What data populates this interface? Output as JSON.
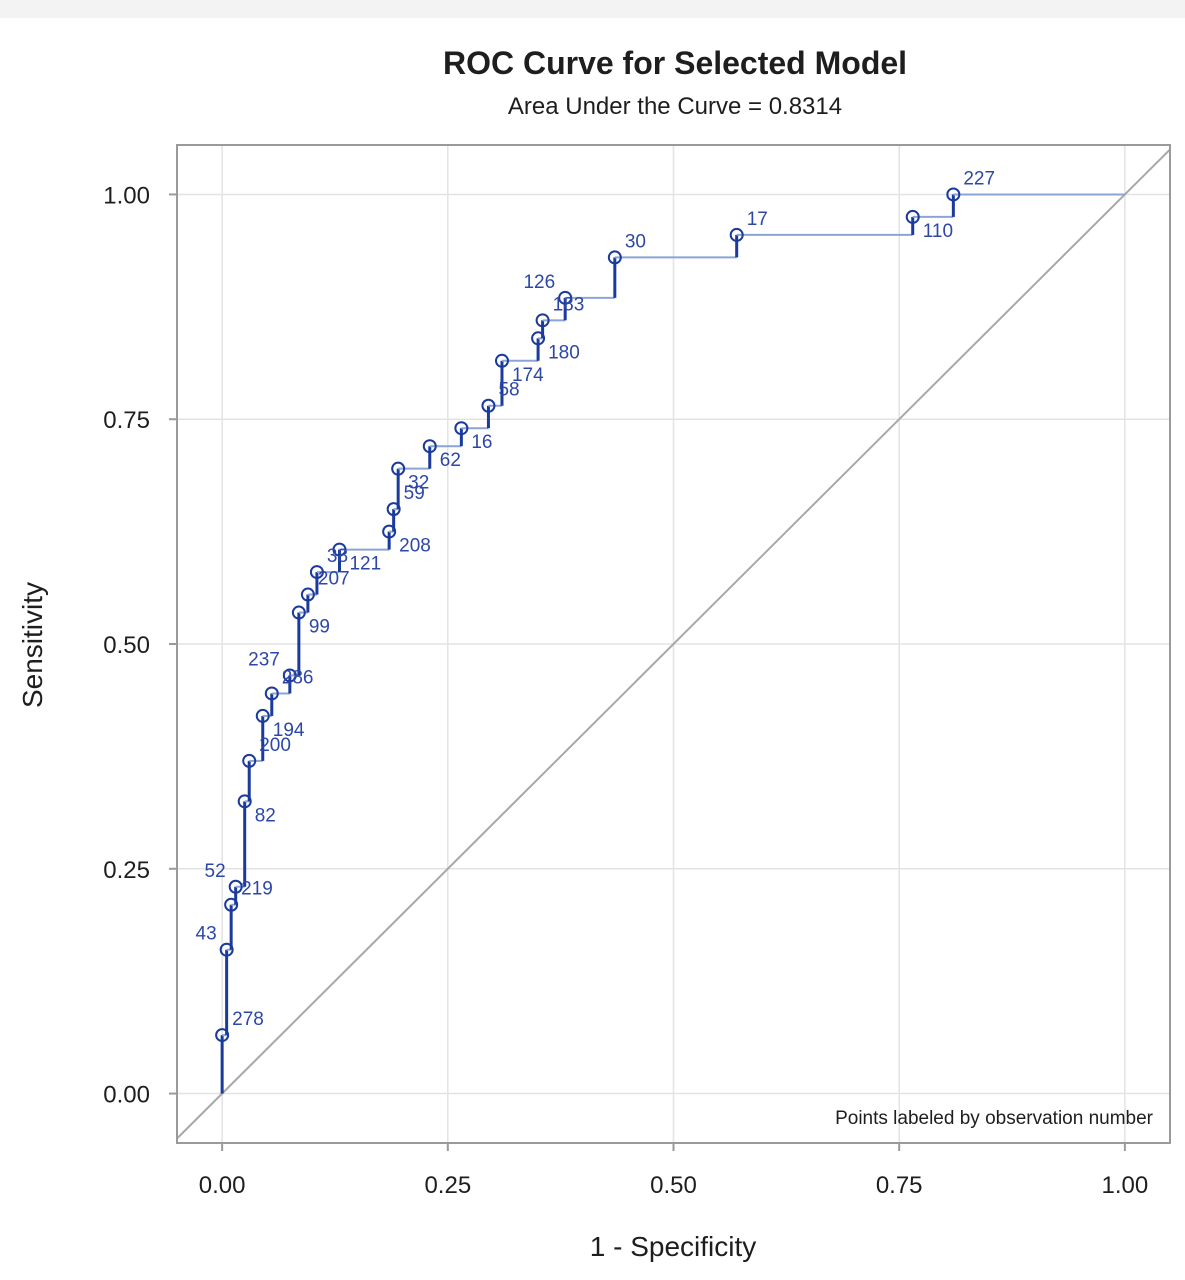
{
  "chart_data": {
    "type": "line",
    "title": "ROC Curve for Selected Model",
    "subtitle": "Area Under the Curve = 0.8314",
    "xlabel": "1 - Specificity",
    "ylabel": "Sensitivity",
    "xlim": [
      -0.05,
      1.05
    ],
    "ylim": [
      -0.055,
      1.055
    ],
    "x_ticks": [
      "0.00",
      "0.25",
      "0.50",
      "0.75",
      "1.00"
    ],
    "y_ticks": [
      "0.00",
      "0.25",
      "0.50",
      "0.75",
      "1.00"
    ],
    "grid": true,
    "annotation": "Points labeled by observation number",
    "reference_line": true,
    "colors": {
      "curve": "#1a3a9c",
      "curve_light": "#8ba4d8",
      "label": "#2d47a8",
      "diagonal": "#a8a8a8",
      "grid": "#e3e3e3",
      "frame": "#9a9a9a"
    },
    "points": [
      {
        "x": 0.0,
        "y": 0.0
      },
      {
        "x": 0.0,
        "y": 0.065,
        "label": "278"
      },
      {
        "x": 0.005,
        "y": 0.16,
        "label": "43"
      },
      {
        "x": 0.01,
        "y": 0.21,
        "label": "219"
      },
      {
        "x": 0.015,
        "y": 0.23,
        "label": "52"
      },
      {
        "x": 0.025,
        "y": 0.325,
        "label": "82"
      },
      {
        "x": 0.03,
        "y": 0.37,
        "label": "200"
      },
      {
        "x": 0.045,
        "y": 0.42,
        "label": "194"
      },
      {
        "x": 0.055,
        "y": 0.445,
        "label": "286"
      },
      {
        "x": 0.075,
        "y": 0.465,
        "label": "237"
      },
      {
        "x": 0.085,
        "y": 0.535,
        "label": "99"
      },
      {
        "x": 0.095,
        "y": 0.555,
        "label": "207"
      },
      {
        "x": 0.105,
        "y": 0.58,
        "label": "38"
      },
      {
        "x": 0.13,
        "y": 0.605,
        "label": "121"
      },
      {
        "x": 0.185,
        "y": 0.625,
        "label": "208"
      },
      {
        "x": 0.19,
        "y": 0.65,
        "label": "59"
      },
      {
        "x": 0.195,
        "y": 0.695,
        "label": "32"
      },
      {
        "x": 0.23,
        "y": 0.72,
        "label": "62"
      },
      {
        "x": 0.265,
        "y": 0.74,
        "label": "16"
      },
      {
        "x": 0.295,
        "y": 0.765,
        "label": "58"
      },
      {
        "x": 0.31,
        "y": 0.815,
        "label": "174"
      },
      {
        "x": 0.35,
        "y": 0.84,
        "label": "180"
      },
      {
        "x": 0.355,
        "y": 0.86,
        "label": "183"
      },
      {
        "x": 0.38,
        "y": 0.885,
        "label": "126"
      },
      {
        "x": 0.435,
        "y": 0.93,
        "label": "30"
      },
      {
        "x": 0.57,
        "y": 0.955,
        "label": "17"
      },
      {
        "x": 0.765,
        "y": 0.975,
        "label": "110"
      },
      {
        "x": 0.81,
        "y": 1.0,
        "label": "227"
      },
      {
        "x": 1.0,
        "y": 1.0
      }
    ]
  }
}
